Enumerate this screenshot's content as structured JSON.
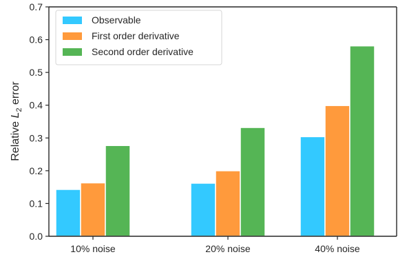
{
  "chart_data": {
    "type": "bar",
    "categories": [
      "10% noise",
      "20% noise",
      "40% noise"
    ],
    "series": [
      {
        "name": "Observable",
        "color": "#33C9FF",
        "values": [
          0.143,
          0.162,
          0.304
        ]
      },
      {
        "name": "First order derivative",
        "color": "#FF9A3C",
        "values": [
          0.163,
          0.2,
          0.399
        ]
      },
      {
        "name": "Second order derivative",
        "color": "#55B555",
        "values": [
          0.277,
          0.332,
          0.581
        ]
      }
    ],
    "ylabel_prefix": "Relative ",
    "ylabel_symbol": "L",
    "ylabel_subscript": "2",
    "ylabel_suffix": " error",
    "xlabel": "",
    "title": "",
    "ylim": [
      0.0,
      0.7
    ],
    "yticks": [
      "0.0",
      "0.1",
      "0.2",
      "0.3",
      "0.4",
      "0.5",
      "0.6",
      "0.7"
    ],
    "grid": false,
    "legend_position": "top-left"
  }
}
